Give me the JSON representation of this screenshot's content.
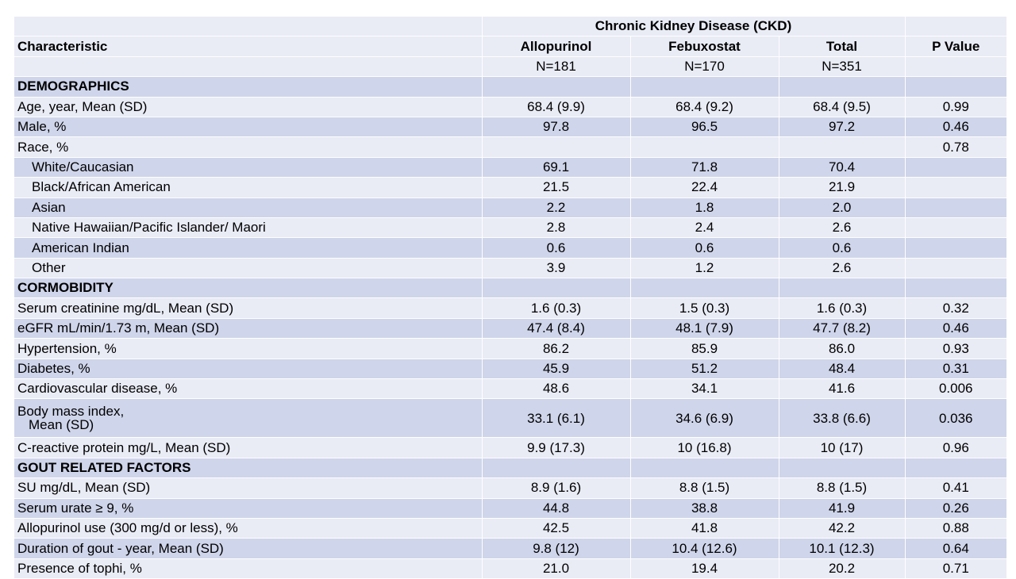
{
  "header": {
    "group": "Chronic Kidney Disease (CKD)",
    "characteristic": "Characteristic",
    "columns": [
      "Allopurinol",
      "Febuxostat",
      "Total",
      "P Value"
    ],
    "n": [
      "N=181",
      "N=170",
      "N=351",
      ""
    ]
  },
  "rows": [
    {
      "label": "DEMOGRAPHICS",
      "section": true,
      "values": [
        "",
        "",
        "",
        ""
      ]
    },
    {
      "label": "Age, year, Mean (SD)",
      "values": [
        "68.4 (9.9)",
        "68.4 (9.2)",
        "68.4 (9.5)",
        "0.99"
      ]
    },
    {
      "label": "Male, %",
      "values": [
        "97.8",
        "96.5",
        "97.2",
        "0.46"
      ]
    },
    {
      "label": "Race, %",
      "values": [
        "",
        "",
        "",
        "0.78"
      ]
    },
    {
      "label": "White/Caucasian",
      "indent": true,
      "values": [
        "69.1",
        "71.8",
        "70.4",
        ""
      ]
    },
    {
      "label": "Black/African American",
      "indent": true,
      "values": [
        "21.5",
        "22.4",
        "21.9",
        ""
      ]
    },
    {
      "label": "Asian",
      "indent": true,
      "values": [
        "2.2",
        "1.8",
        "2.0",
        ""
      ]
    },
    {
      "label": "Native Hawaiian/Pacific Islander/ Maori",
      "indent": true,
      "values": [
        "2.8",
        "2.4",
        "2.6",
        ""
      ]
    },
    {
      "label": "American Indian",
      "indent": true,
      "values": [
        "0.6",
        "0.6",
        "0.6",
        ""
      ]
    },
    {
      "label": "Other",
      "indent": true,
      "values": [
        "3.9",
        "1.2",
        "2.6",
        ""
      ]
    },
    {
      "label": "CORMOBIDITY",
      "section": true,
      "values": [
        "",
        "",
        "",
        ""
      ]
    },
    {
      "label": "Serum creatinine mg/dL, Mean (SD)",
      "values": [
        "1.6 (0.3)",
        "1.5 (0.3)",
        "1.6 (0.3)",
        "0.32"
      ]
    },
    {
      "label": "eGFR mL/min/1.73 m, Mean (SD)",
      "values": [
        "47.4 (8.4)",
        "48.1 (7.9)",
        "47.7 (8.2)",
        "0.46"
      ]
    },
    {
      "label": "Hypertension, %",
      "values": [
        "86.2",
        "85.9",
        "86.0",
        "0.93"
      ]
    },
    {
      "label": "Diabetes, %",
      "values": [
        "45.9",
        "51.2",
        "48.4",
        "0.31"
      ]
    },
    {
      "label": "Cardiovascular disease, %",
      "values": [
        "48.6",
        "34.1",
        "41.6",
        "0.006"
      ]
    },
    {
      "label": "Body mass index,",
      "label2": "Mean (SD)",
      "values": [
        "33.1 (6.1)",
        "34.6 (6.9)",
        "33.8 (6.6)",
        "0.036"
      ]
    },
    {
      "label": "C-reactive protein mg/L, Mean (SD)",
      "values": [
        "9.9 (17.3)",
        "10 (16.8)",
        "10 (17)",
        "0.96"
      ]
    },
    {
      "label": "GOUT RELATED FACTORS",
      "section": true,
      "values": [
        "",
        "",
        "",
        ""
      ]
    },
    {
      "label": "SU mg/dL, Mean (SD)",
      "values": [
        "8.9 (1.6)",
        "8.8 (1.5)",
        "8.8 (1.5)",
        "0.41"
      ]
    },
    {
      "label": "Serum urate ≥ 9, %",
      "values": [
        "44.8",
        "38.8",
        "41.9",
        "0.26"
      ]
    },
    {
      "label": "Allopurinol use (300 mg/d or less), %",
      "values": [
        "42.5",
        "41.8",
        "42.2",
        "0.88"
      ]
    },
    {
      "label": "Duration of gout - year, Mean (SD)",
      "values": [
        "9.8 (12)",
        "10.4 (12.6)",
        "10.1 (12.3)",
        "0.64"
      ]
    },
    {
      "label": "Presence of tophi, %",
      "values": [
        "21.0",
        "19.4",
        "20.2",
        "0.71"
      ]
    }
  ]
}
